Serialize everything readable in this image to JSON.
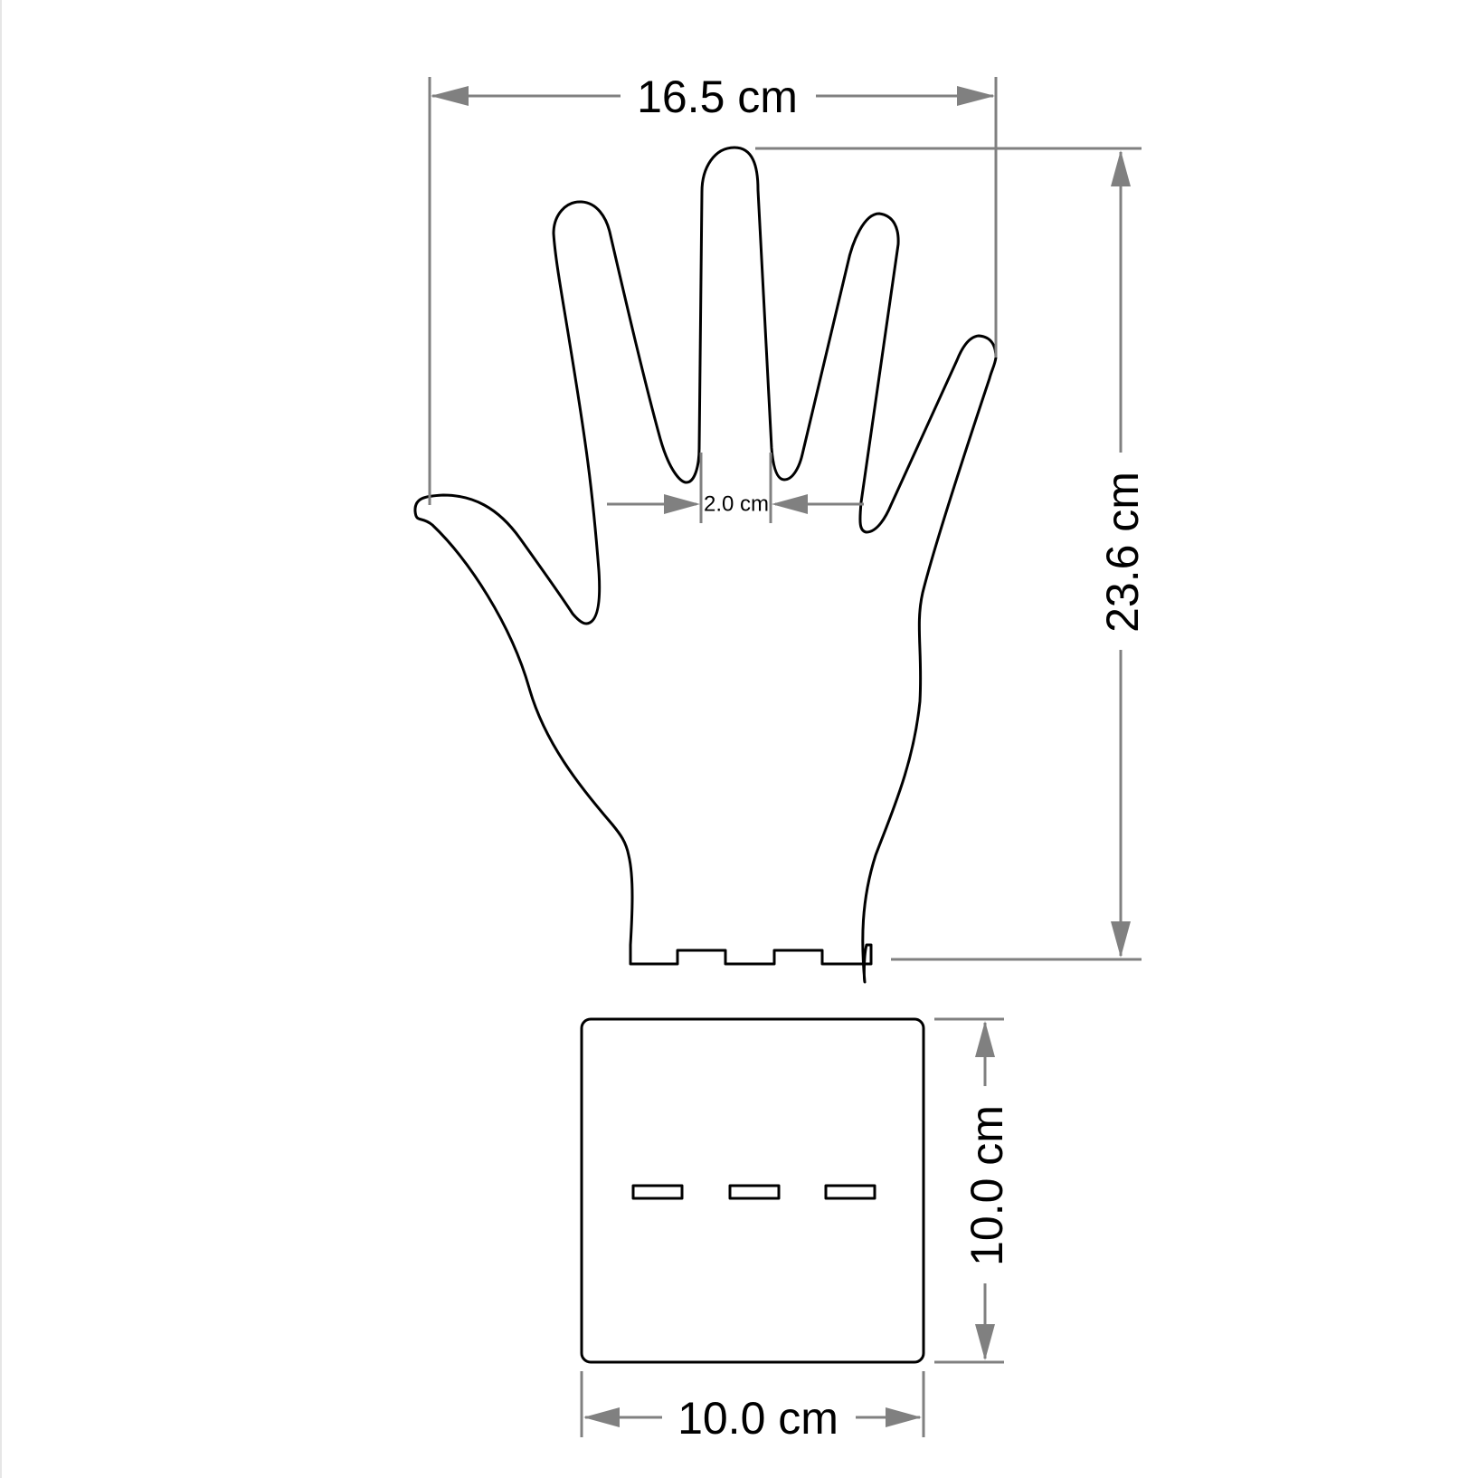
{
  "figure": {
    "hand_stand": {
      "width_label": "16.5 cm",
      "height_label": "23.6 cm",
      "finger_gap_label": "2.0 cm"
    },
    "base_plate": {
      "width_label": "10.0 cm",
      "height_label": "10.0 cm",
      "slot_count": 3
    }
  },
  "colors": {
    "outline": "#000000",
    "dimension": "#808080",
    "background": "#ffffff"
  }
}
